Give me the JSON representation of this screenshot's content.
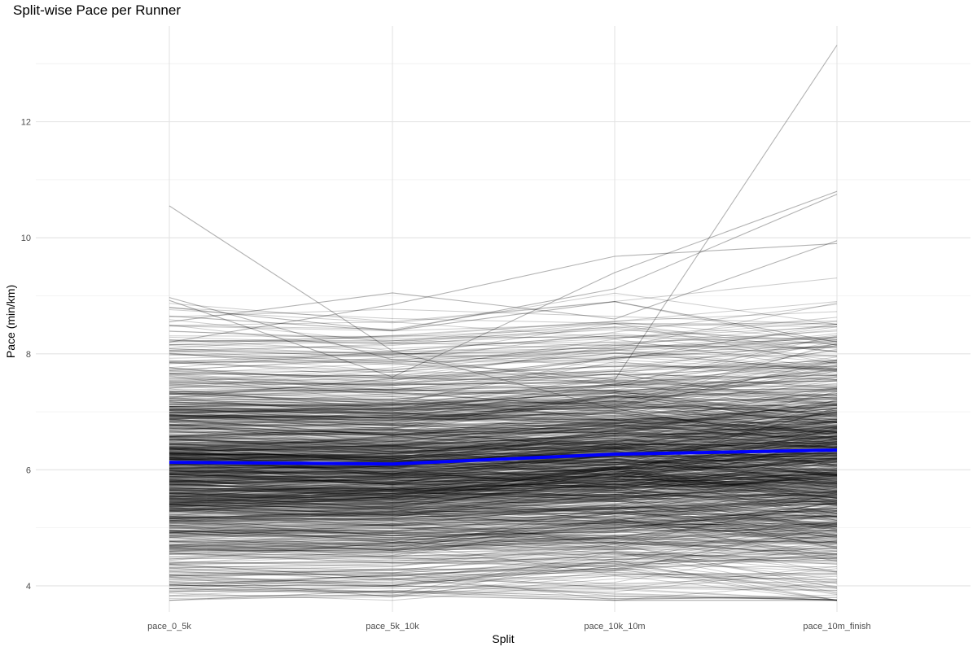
{
  "chart_data": {
    "type": "line",
    "title": "Split-wise Pace per Runner",
    "xlabel": "Split",
    "ylabel": "Pace (min/km)",
    "categories": [
      "pace_0_5k",
      "pace_5k_10k",
      "pace_10k_10m",
      "pace_10m_finish"
    ],
    "ylim": [
      3.55,
      13.65
    ],
    "y_ticks": [
      4,
      6,
      8,
      10,
      12
    ],
    "grid": true,
    "series_style": "many individual runners drawn as thin semi-transparent black lines",
    "runner_count_approx": 1000,
    "highlighted_series": [
      {
        "values": [
          10.55,
          8.05,
          7.05,
          6.45
        ]
      },
      {
        "values": [
          3.75,
          3.92,
          3.82,
          3.76
        ]
      },
      {
        "values": [
          8.97,
          7.9,
          7.55,
          13.32
        ]
      },
      {
        "values": [
          8.92,
          7.6,
          9.4,
          10.8
        ]
      },
      {
        "values": [
          8.55,
          9.05,
          8.6,
          9.95
        ]
      },
      {
        "values": [
          8.2,
          8.85,
          9.68,
          9.9
        ]
      },
      {
        "values": [
          8.65,
          8.4,
          9.12,
          10.75
        ]
      },
      {
        "values": [
          8.8,
          8.4,
          8.9,
          8.2
        ]
      },
      {
        "values": [
          4.15,
          4.05,
          4.2,
          4.22
        ]
      },
      {
        "values": [
          3.95,
          3.9,
          3.78,
          3.8
        ]
      }
    ],
    "mean_series": {
      "color": "#0000ff",
      "values": [
        6.13,
        6.1,
        6.27,
        6.34
      ]
    }
  }
}
